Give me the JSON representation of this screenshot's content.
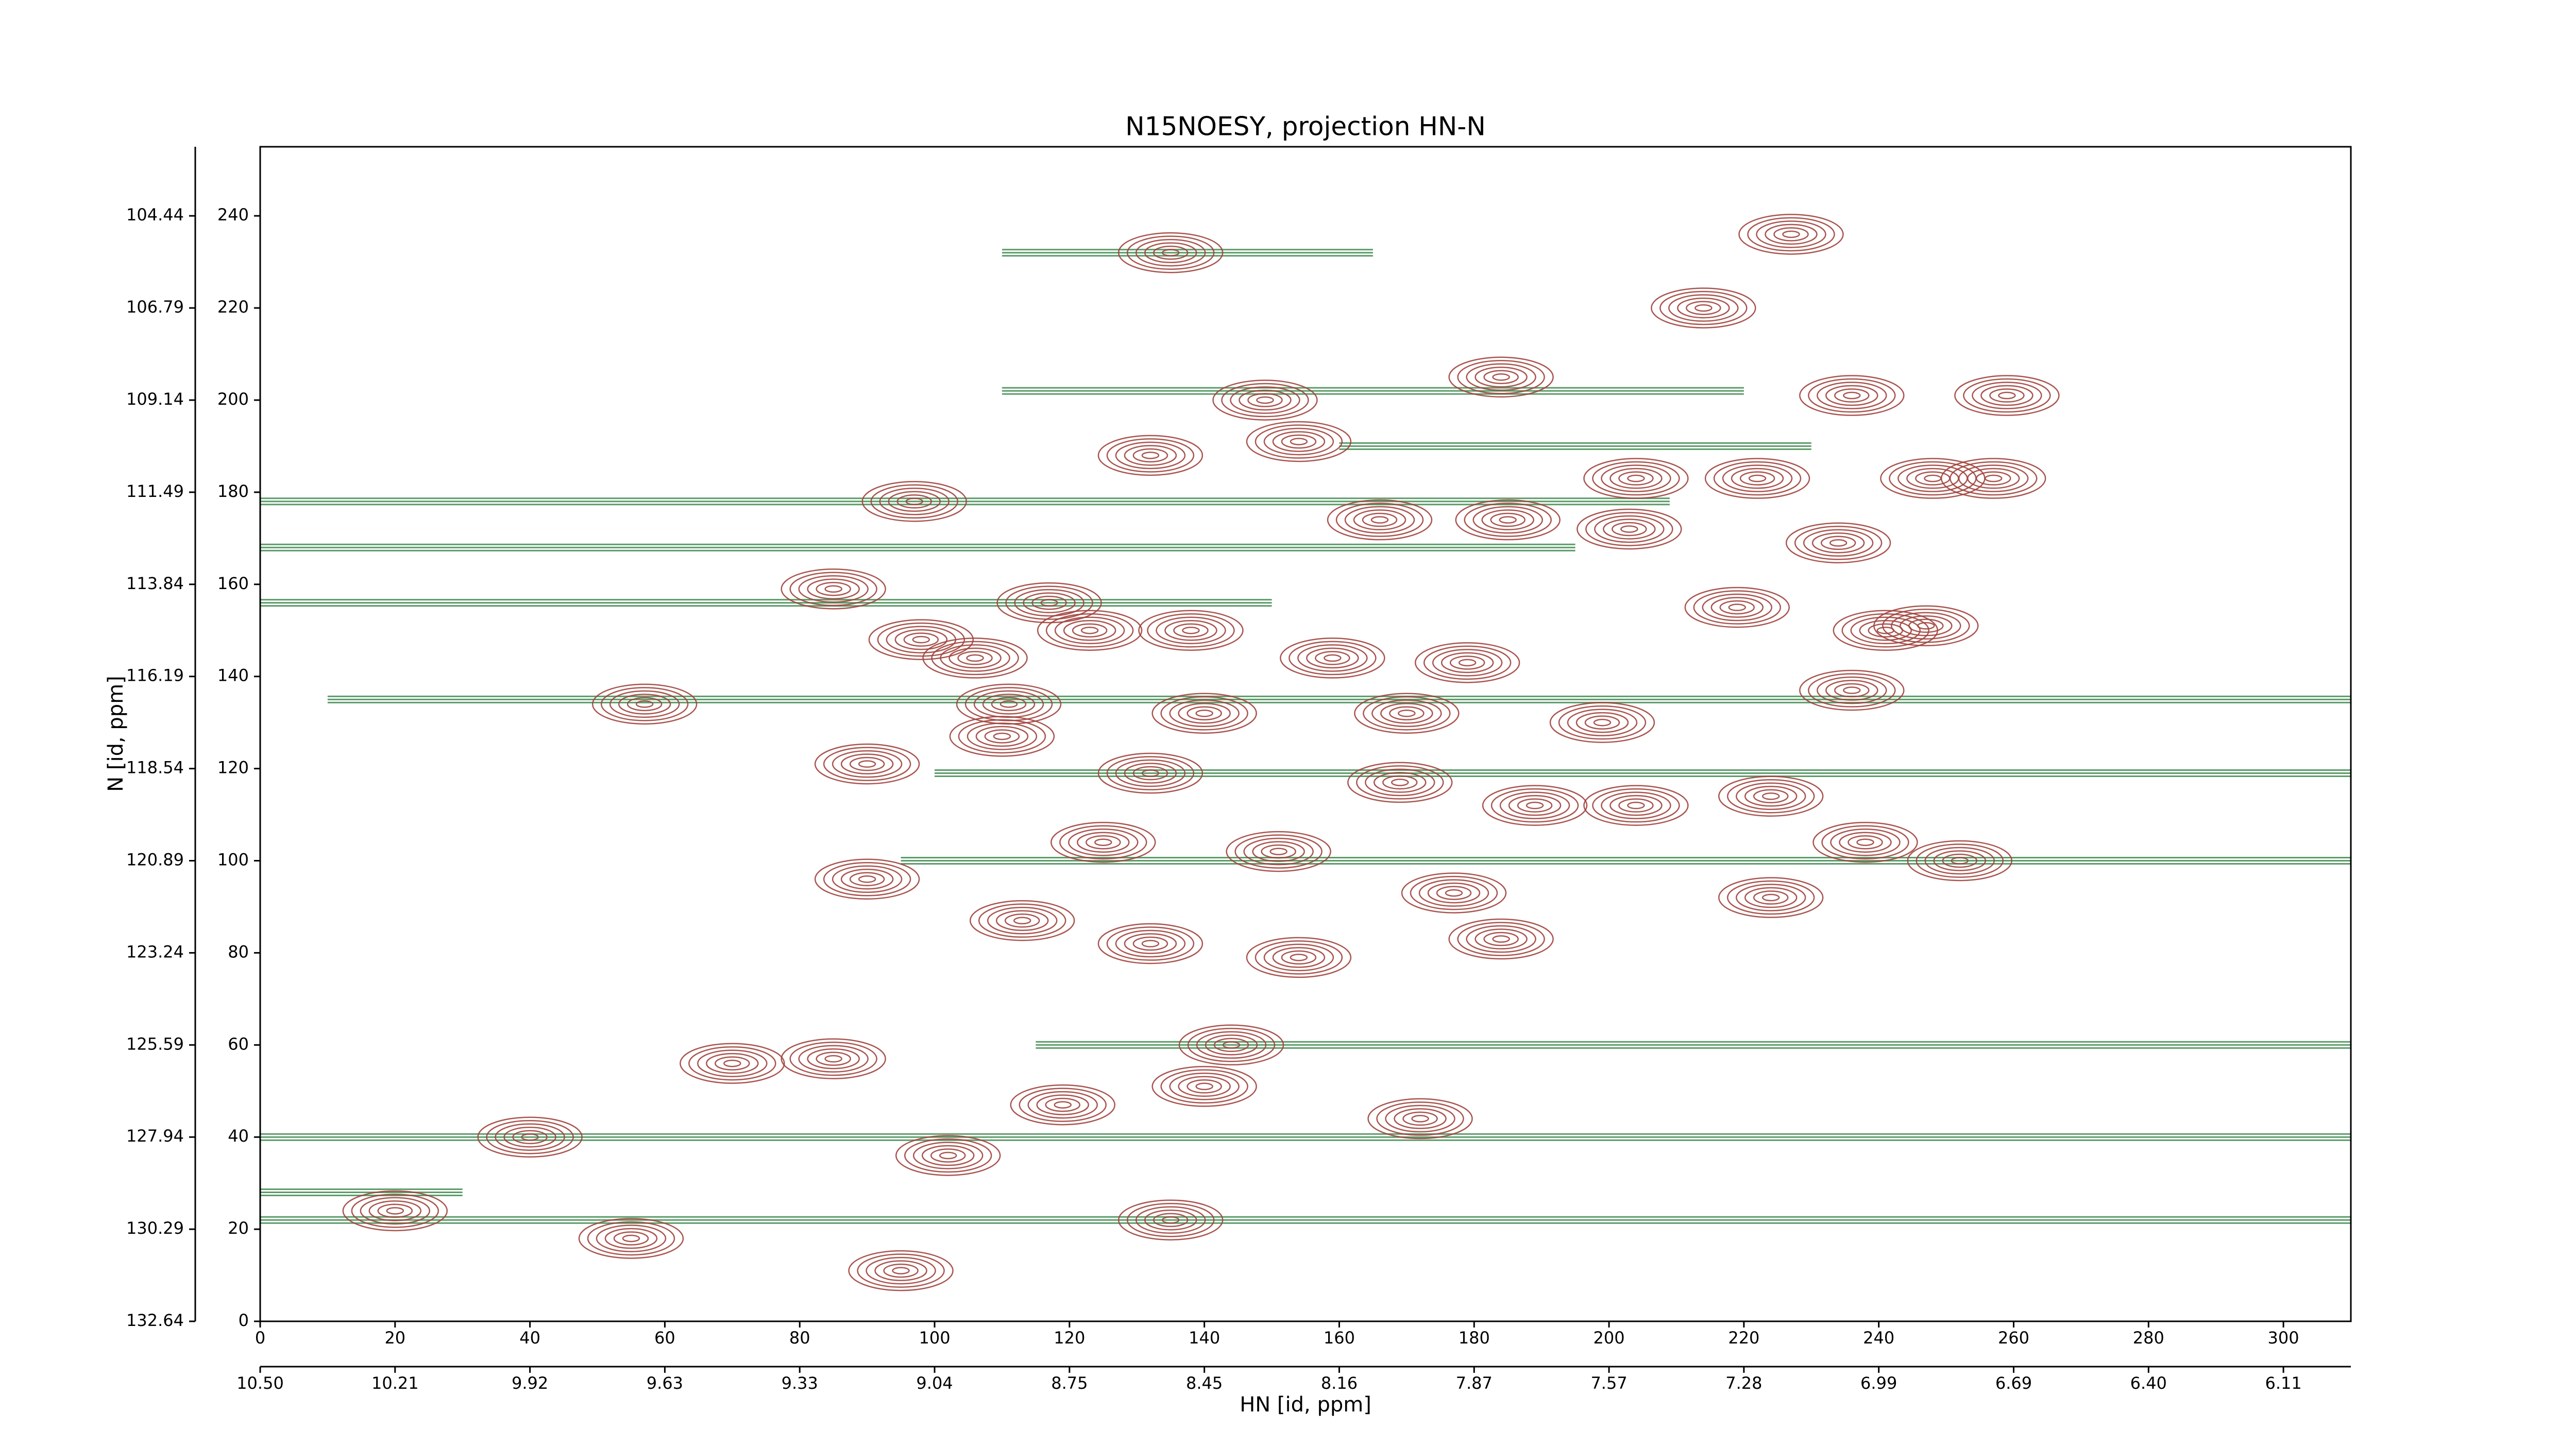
{
  "chart_data": {
    "type": "contour",
    "title": "N15NOESY, projection HN-N",
    "x_label": "HN [id, ppm]",
    "y_label": "N [id, ppm]",
    "xlim": [
      0,
      310
    ],
    "ylim": [
      0,
      255
    ],
    "xticks": [
      0,
      20,
      40,
      60,
      80,
      100,
      120,
      140,
      160,
      180,
      200,
      220,
      240,
      260,
      280,
      300
    ],
    "yticks": [
      0,
      20,
      40,
      60,
      80,
      100,
      120,
      140,
      160,
      180,
      200,
      220,
      240
    ],
    "x_ppm_ticks": [
      {
        "value": 0,
        "label": "10.50"
      },
      {
        "value": 20,
        "label": "10.21"
      },
      {
        "value": 40,
        "label": "9.92"
      },
      {
        "value": 60,
        "label": "9.63"
      },
      {
        "value": 80,
        "label": "9.33"
      },
      {
        "value": 100,
        "label": "9.04"
      },
      {
        "value": 120,
        "label": "8.75"
      },
      {
        "value": 140,
        "label": "8.45"
      },
      {
        "value": 160,
        "label": "8.16"
      },
      {
        "value": 180,
        "label": "7.87"
      },
      {
        "value": 200,
        "label": "7.57"
      },
      {
        "value": 220,
        "label": "7.28"
      },
      {
        "value": 240,
        "label": "6.99"
      },
      {
        "value": 260,
        "label": "6.69"
      },
      {
        "value": 280,
        "label": "6.40"
      },
      {
        "value": 300,
        "label": "6.11"
      }
    ],
    "y_ppm_ticks": [
      {
        "value": 0,
        "label": "132.64"
      },
      {
        "value": 20,
        "label": "130.29"
      },
      {
        "value": 40,
        "label": "127.94"
      },
      {
        "value": 60,
        "label": "125.59"
      },
      {
        "value": 80,
        "label": "123.24"
      },
      {
        "value": 100,
        "label": "120.89"
      },
      {
        "value": 120,
        "label": "118.54"
      },
      {
        "value": 140,
        "label": "116.19"
      },
      {
        "value": 160,
        "label": "113.84"
      },
      {
        "value": 180,
        "label": "111.49"
      },
      {
        "value": 200,
        "label": "109.14"
      },
      {
        "value": 220,
        "label": "106.79"
      },
      {
        "value": 240,
        "label": "104.44"
      }
    ],
    "peaks": {
      "color": "#a0433c",
      "x": [
        135,
        227,
        214,
        184,
        236,
        259,
        149,
        132,
        154,
        97,
        204,
        222,
        248,
        257,
        166,
        185,
        203,
        234,
        85,
        117,
        123,
        138,
        219,
        241,
        247,
        98,
        106,
        159,
        179,
        57,
        111,
        140,
        236,
        170,
        199,
        110,
        90,
        132,
        169,
        189,
        204,
        224,
        238,
        252,
        90,
        125,
        151,
        177,
        224,
        113,
        132,
        154,
        184,
        144,
        140,
        70,
        85,
        119,
        172,
        40,
        102,
        20,
        135,
        55,
        95
      ],
      "y": [
        232,
        236,
        220,
        205,
        201,
        201,
        200,
        188,
        191,
        178,
        183,
        183,
        183,
        183,
        174,
        174,
        172,
        169,
        159,
        156,
        150,
        150,
        155,
        150,
        151,
        148,
        144,
        144,
        143,
        134,
        134,
        132,
        137,
        132,
        130,
        127,
        121,
        119,
        117,
        112,
        112,
        114,
        104,
        100,
        96,
        104,
        102,
        93,
        92,
        87,
        82,
        79,
        83,
        60,
        51,
        56,
        57,
        47,
        44,
        40,
        36,
        24,
        22,
        18,
        11
      ]
    },
    "negative_streaks": {
      "color": "#3f8a4f",
      "y": [
        178,
        168,
        156,
        135,
        40,
        22,
        28,
        232,
        202,
        190,
        60,
        119,
        100
      ],
      "x_start": [
        0,
        0,
        0,
        10,
        0,
        0,
        0,
        110,
        110,
        160,
        115,
        100,
        95
      ],
      "x_end": [
        209,
        195,
        150,
        310,
        310,
        310,
        30,
        165,
        220,
        230,
        310,
        310,
        310
      ]
    }
  }
}
